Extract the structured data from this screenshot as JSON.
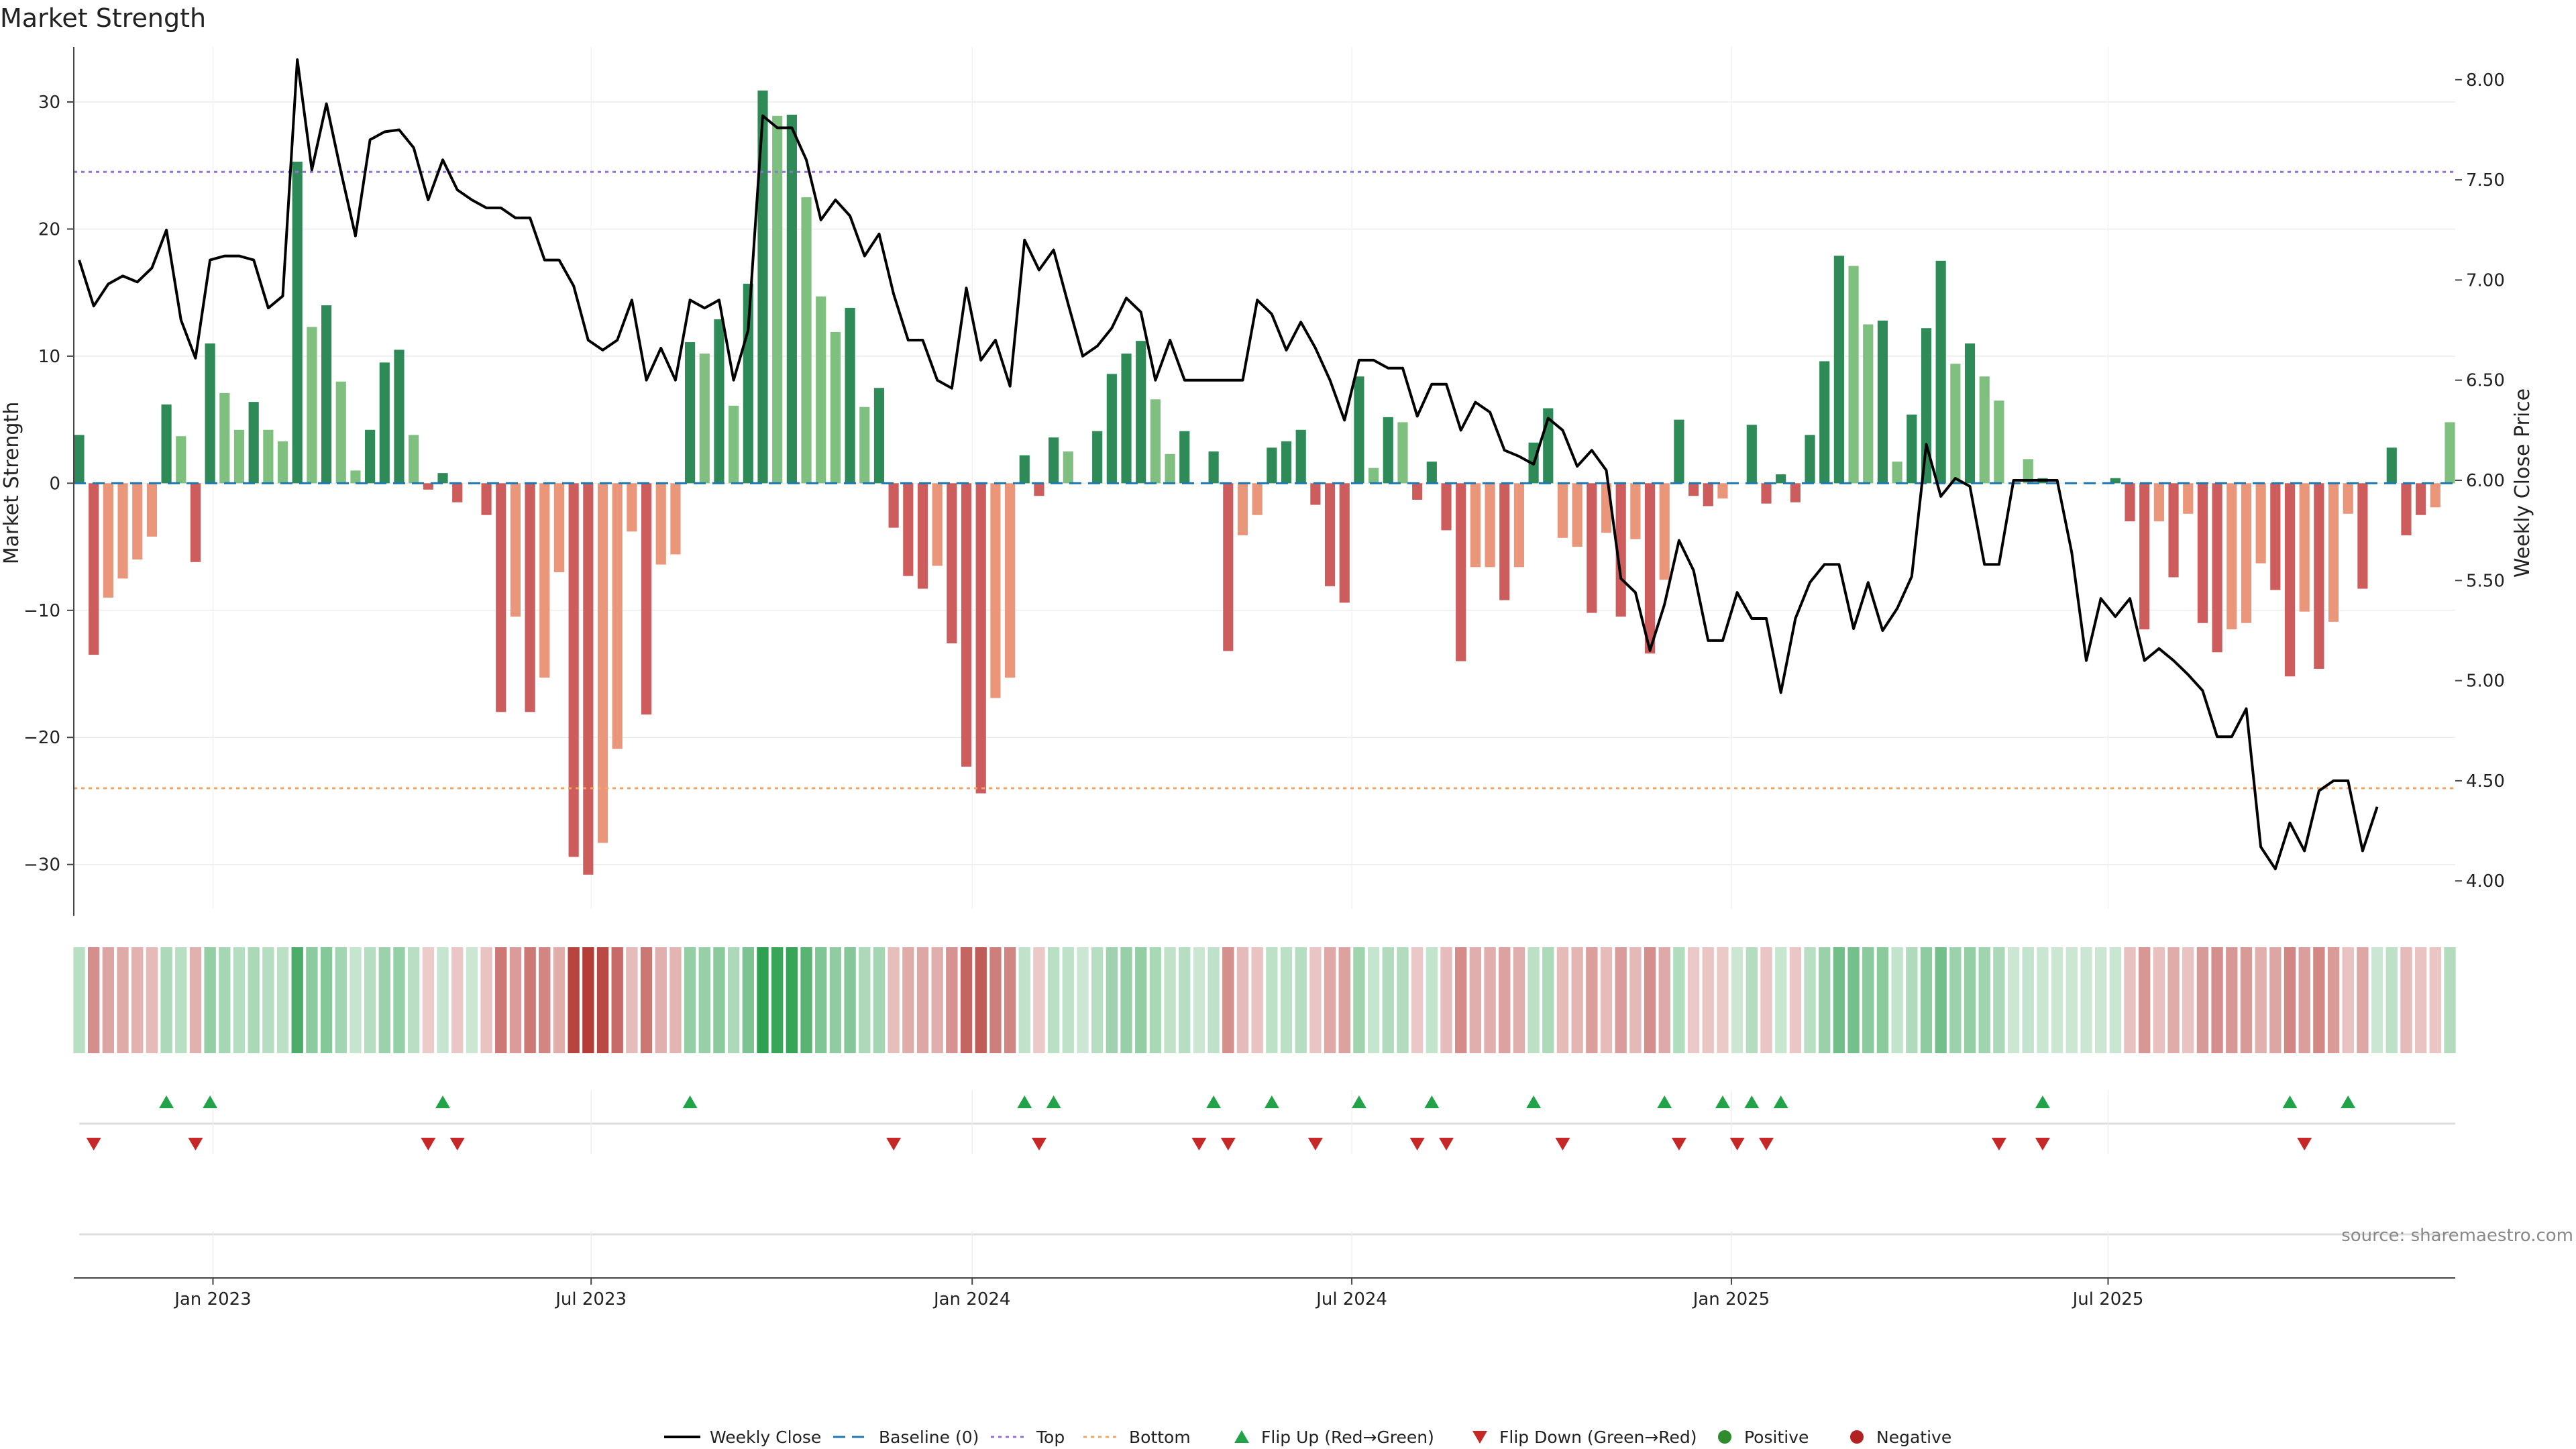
{
  "chart_data": {
    "type": "bar",
    "title": "Market Strength",
    "ylabel_left": "Market Strength",
    "ylabel_right": "Weekly Close Price",
    "y_left_ticks": [
      "−30",
      "−20",
      "−10",
      "0",
      "10",
      "20",
      "30"
    ],
    "y_right_ticks": [
      "4.00",
      "4.50",
      "5.00",
      "5.50",
      "6.00",
      "6.50",
      "7.00",
      "7.50",
      "8.00"
    ],
    "ylim_left": [
      -33.5,
      33.8
    ],
    "ylim_right": [
      3.86,
      8.13
    ],
    "x_ticks": [
      "Jan 2023",
      "Jul 2023",
      "Jan 2024",
      "Jul 2024",
      "Jan 2025",
      "Jul 2025"
    ],
    "x_tick_positions": [
      9.2,
      35.2,
      61.4,
      87.5,
      113.6,
      139.5
    ],
    "top_level": 24.5,
    "bottom_level": -24.0,
    "grid": true,
    "legend_position": "bottom-center",
    "source": "source: sharemaestro.com",
    "colors": {
      "positive_strong": "#2e8b57",
      "positive_light": "#7fbf7f",
      "negative_strong": "#cd5c5c",
      "negative_light": "#e9967a",
      "line": "#000000",
      "baseline": "#1f77b4",
      "top": "#9370db",
      "bottom": "#f4a460",
      "flip_up": "#22a34a",
      "flip_down": "#c62828",
      "positive_dot": "#2e8b2e",
      "negative_dot": "#b22222"
    },
    "strength": [
      3.8,
      -13.5,
      -9,
      -7.5,
      -6,
      -4.2,
      6.2,
      3.7,
      -6.2,
      11,
      7.1,
      4.2,
      6.4,
      4.2,
      3.3,
      25.3,
      12.3,
      14,
      8,
      1,
      4.2,
      9.5,
      10.5,
      3.8,
      -0.5,
      0.8,
      -1.5,
      0,
      -2.5,
      -18,
      -10.5,
      -18,
      -15.3,
      -7,
      -29.4,
      -30.8,
      -28.3,
      -20.9,
      -3.8,
      -18.2,
      -6.4,
      -5.6,
      11.1,
      10.2,
      12.9,
      6.1,
      15.7,
      30.9,
      28.9,
      29,
      22.5,
      14.7,
      11.9,
      13.8,
      6,
      7.5,
      -3.5,
      -7.3,
      -8.3,
      -6.5,
      -12.6,
      -22.3,
      -24.4,
      -16.9,
      -15.3,
      2.2,
      -1,
      3.6,
      2.5,
      0,
      4.1,
      8.6,
      10.2,
      11.2,
      6.6,
      2.3,
      4.1,
      0,
      2.5,
      -13.2,
      -4.1,
      -2.5,
      2.8,
      3.3,
      4.2,
      -1.7,
      -8.1,
      -9.4,
      8.4,
      1.2,
      5.2,
      4.8,
      -1.3,
      1.7,
      -3.7,
      -14,
      -6.6,
      -6.6,
      -9.2,
      -6.6,
      3.2,
      5.9,
      -4.3,
      -5,
      -10.2,
      -3.9,
      -10.5,
      -4.4,
      -13.4,
      -7.6,
      5,
      -1,
      -1.8,
      -1.2,
      0,
      4.6,
      -1.6,
      0.7,
      -1.5,
      3.8,
      9.6,
      17.9,
      17.1,
      12.5,
      12.8,
      1.7,
      5.4,
      12.2,
      17.5,
      9.4,
      11,
      8.4,
      6.5,
      0,
      1.9,
      0.4,
      0,
      0,
      0,
      0,
      0.4,
      -3,
      -11.5,
      -3,
      -7.4,
      -2.4,
      -11,
      -13.3,
      -11.5,
      -11,
      -6.3,
      -8.4,
      -15.2,
      -10.1,
      -14.6,
      -10.9,
      -2.4,
      -8.3,
      0,
      2.8,
      -4.1,
      -2.5,
      -1.9,
      4.8
    ],
    "shade": [
      "s",
      "s",
      "l",
      "l",
      "l",
      "l",
      "s",
      "l",
      "s",
      "s",
      "l",
      "l",
      "s",
      "l",
      "l",
      "s",
      "l",
      "s",
      "l",
      "l",
      "s",
      "s",
      "s",
      "l",
      "s",
      "s",
      "s",
      "n",
      "s",
      "s",
      "l",
      "s",
      "l",
      "l",
      "s",
      "s",
      "l",
      "l",
      "l",
      "s",
      "l",
      "l",
      "s",
      "l",
      "s",
      "l",
      "s",
      "s",
      "l",
      "s",
      "l",
      "l",
      "l",
      "s",
      "l",
      "s",
      "s",
      "s",
      "s",
      "l",
      "s",
      "s",
      "s",
      "l",
      "l",
      "s",
      "s",
      "s",
      "l",
      "n",
      "s",
      "s",
      "s",
      "s",
      "l",
      "l",
      "s",
      "n",
      "s",
      "s",
      "l",
      "l",
      "s",
      "s",
      "s",
      "s",
      "s",
      "s",
      "s",
      "l",
      "s",
      "l",
      "s",
      "s",
      "s",
      "s",
      "l",
      "l",
      "s",
      "l",
      "s",
      "s",
      "l",
      "l",
      "s",
      "l",
      "s",
      "l",
      "s",
      "l",
      "s",
      "s",
      "s",
      "l",
      "n",
      "s",
      "s",
      "s",
      "s",
      "s",
      "s",
      "s",
      "l",
      "l",
      "s",
      "l",
      "s",
      "s",
      "s",
      "l",
      "s",
      "l",
      "l",
      "n",
      "l",
      "s",
      "n",
      "n",
      "n",
      "n",
      "s",
      "s",
      "s",
      "l",
      "s",
      "l",
      "s",
      "s",
      "l",
      "l",
      "l",
      "s",
      "s",
      "l",
      "s",
      "l",
      "l",
      "s",
      "s",
      "n",
      "s",
      "s",
      "l",
      "l",
      "s"
    ],
    "close": [
      7.1,
      6.87,
      6.98,
      7.02,
      6.99,
      7.06,
      7.25,
      6.8,
      6.61,
      7.1,
      7.12,
      7.12,
      7.1,
      6.86,
      6.92,
      8.1,
      7.55,
      7.88,
      7.54,
      7.22,
      7.7,
      7.74,
      7.75,
      7.66,
      7.4,
      7.6,
      7.45,
      7.4,
      7.36,
      7.36,
      7.31,
      7.31,
      7.1,
      7.1,
      6.97,
      6.7,
      6.65,
      6.7,
      6.9,
      6.5,
      6.66,
      6.5,
      6.9,
      6.86,
      6.9,
      6.5,
      6.75,
      7.82,
      7.76,
      7.76,
      7.6,
      7.3,
      7.4,
      7.32,
      7.12,
      7.23,
      6.93,
      6.7,
      6.7,
      6.5,
      6.46,
      6.96,
      6.6,
      6.7,
      6.47,
      7.2,
      7.05,
      7.15,
      6.88,
      6.62,
      6.67,
      6.76,
      6.91,
      6.84,
      6.5,
      6.7,
      6.5,
      6.5,
      6.5,
      6.5,
      6.5,
      6.9,
      6.83,
      6.65,
      6.79,
      6.66,
      6.5,
      6.3,
      6.6,
      6.6,
      6.56,
      6.56,
      6.32,
      6.48,
      6.48,
      6.25,
      6.39,
      6.34,
      6.15,
      6.12,
      6.08,
      6.31,
      6.25,
      6.07,
      6.15,
      6.05,
      5.51,
      5.44,
      5.15,
      5.38,
      5.7,
      5.55,
      5.2,
      5.2,
      5.44,
      5.31,
      5.31,
      4.94,
      5.31,
      5.49,
      5.58,
      5.58,
      5.26,
      5.49,
      5.25,
      5.36,
      5.52,
      6.18,
      5.92,
      6.01,
      5.97,
      5.58,
      5.58,
      6.0,
      6.0,
      6.0,
      6.0,
      5.64,
      5.1,
      5.41,
      5.32,
      5.41,
      5.1,
      5.16,
      5.1,
      5.03,
      4.95,
      4.72,
      4.72,
      4.86,
      4.17,
      4.06,
      4.29,
      4.15,
      4.45,
      4.5,
      4.5,
      4.15,
      4.37
    ],
    "flip_up_weeks": [
      6,
      9,
      25,
      42,
      65,
      67,
      78,
      82,
      88,
      93,
      100,
      109,
      113,
      115,
      117,
      135,
      152,
      156
    ],
    "flip_down_weeks": [
      1,
      8,
      24,
      26,
      56,
      66,
      77,
      79,
      85,
      92,
      94,
      102,
      110,
      114,
      116,
      132,
      135,
      153
    ]
  },
  "legend": [
    {
      "label": "Weekly Close",
      "kind": "line"
    },
    {
      "label": "Baseline (0)",
      "kind": "dash-blue"
    },
    {
      "label": "Top",
      "kind": "dot-purple"
    },
    {
      "label": "Bottom",
      "kind": "dot-orange"
    },
    {
      "label": "Flip Up (Red→Green)",
      "kind": "tri-up"
    },
    {
      "label": "Flip Down (Green→Red)",
      "kind": "tri-down"
    },
    {
      "label": "Positive",
      "kind": "dot-green"
    },
    {
      "label": "Negative",
      "kind": "dot-red"
    }
  ]
}
